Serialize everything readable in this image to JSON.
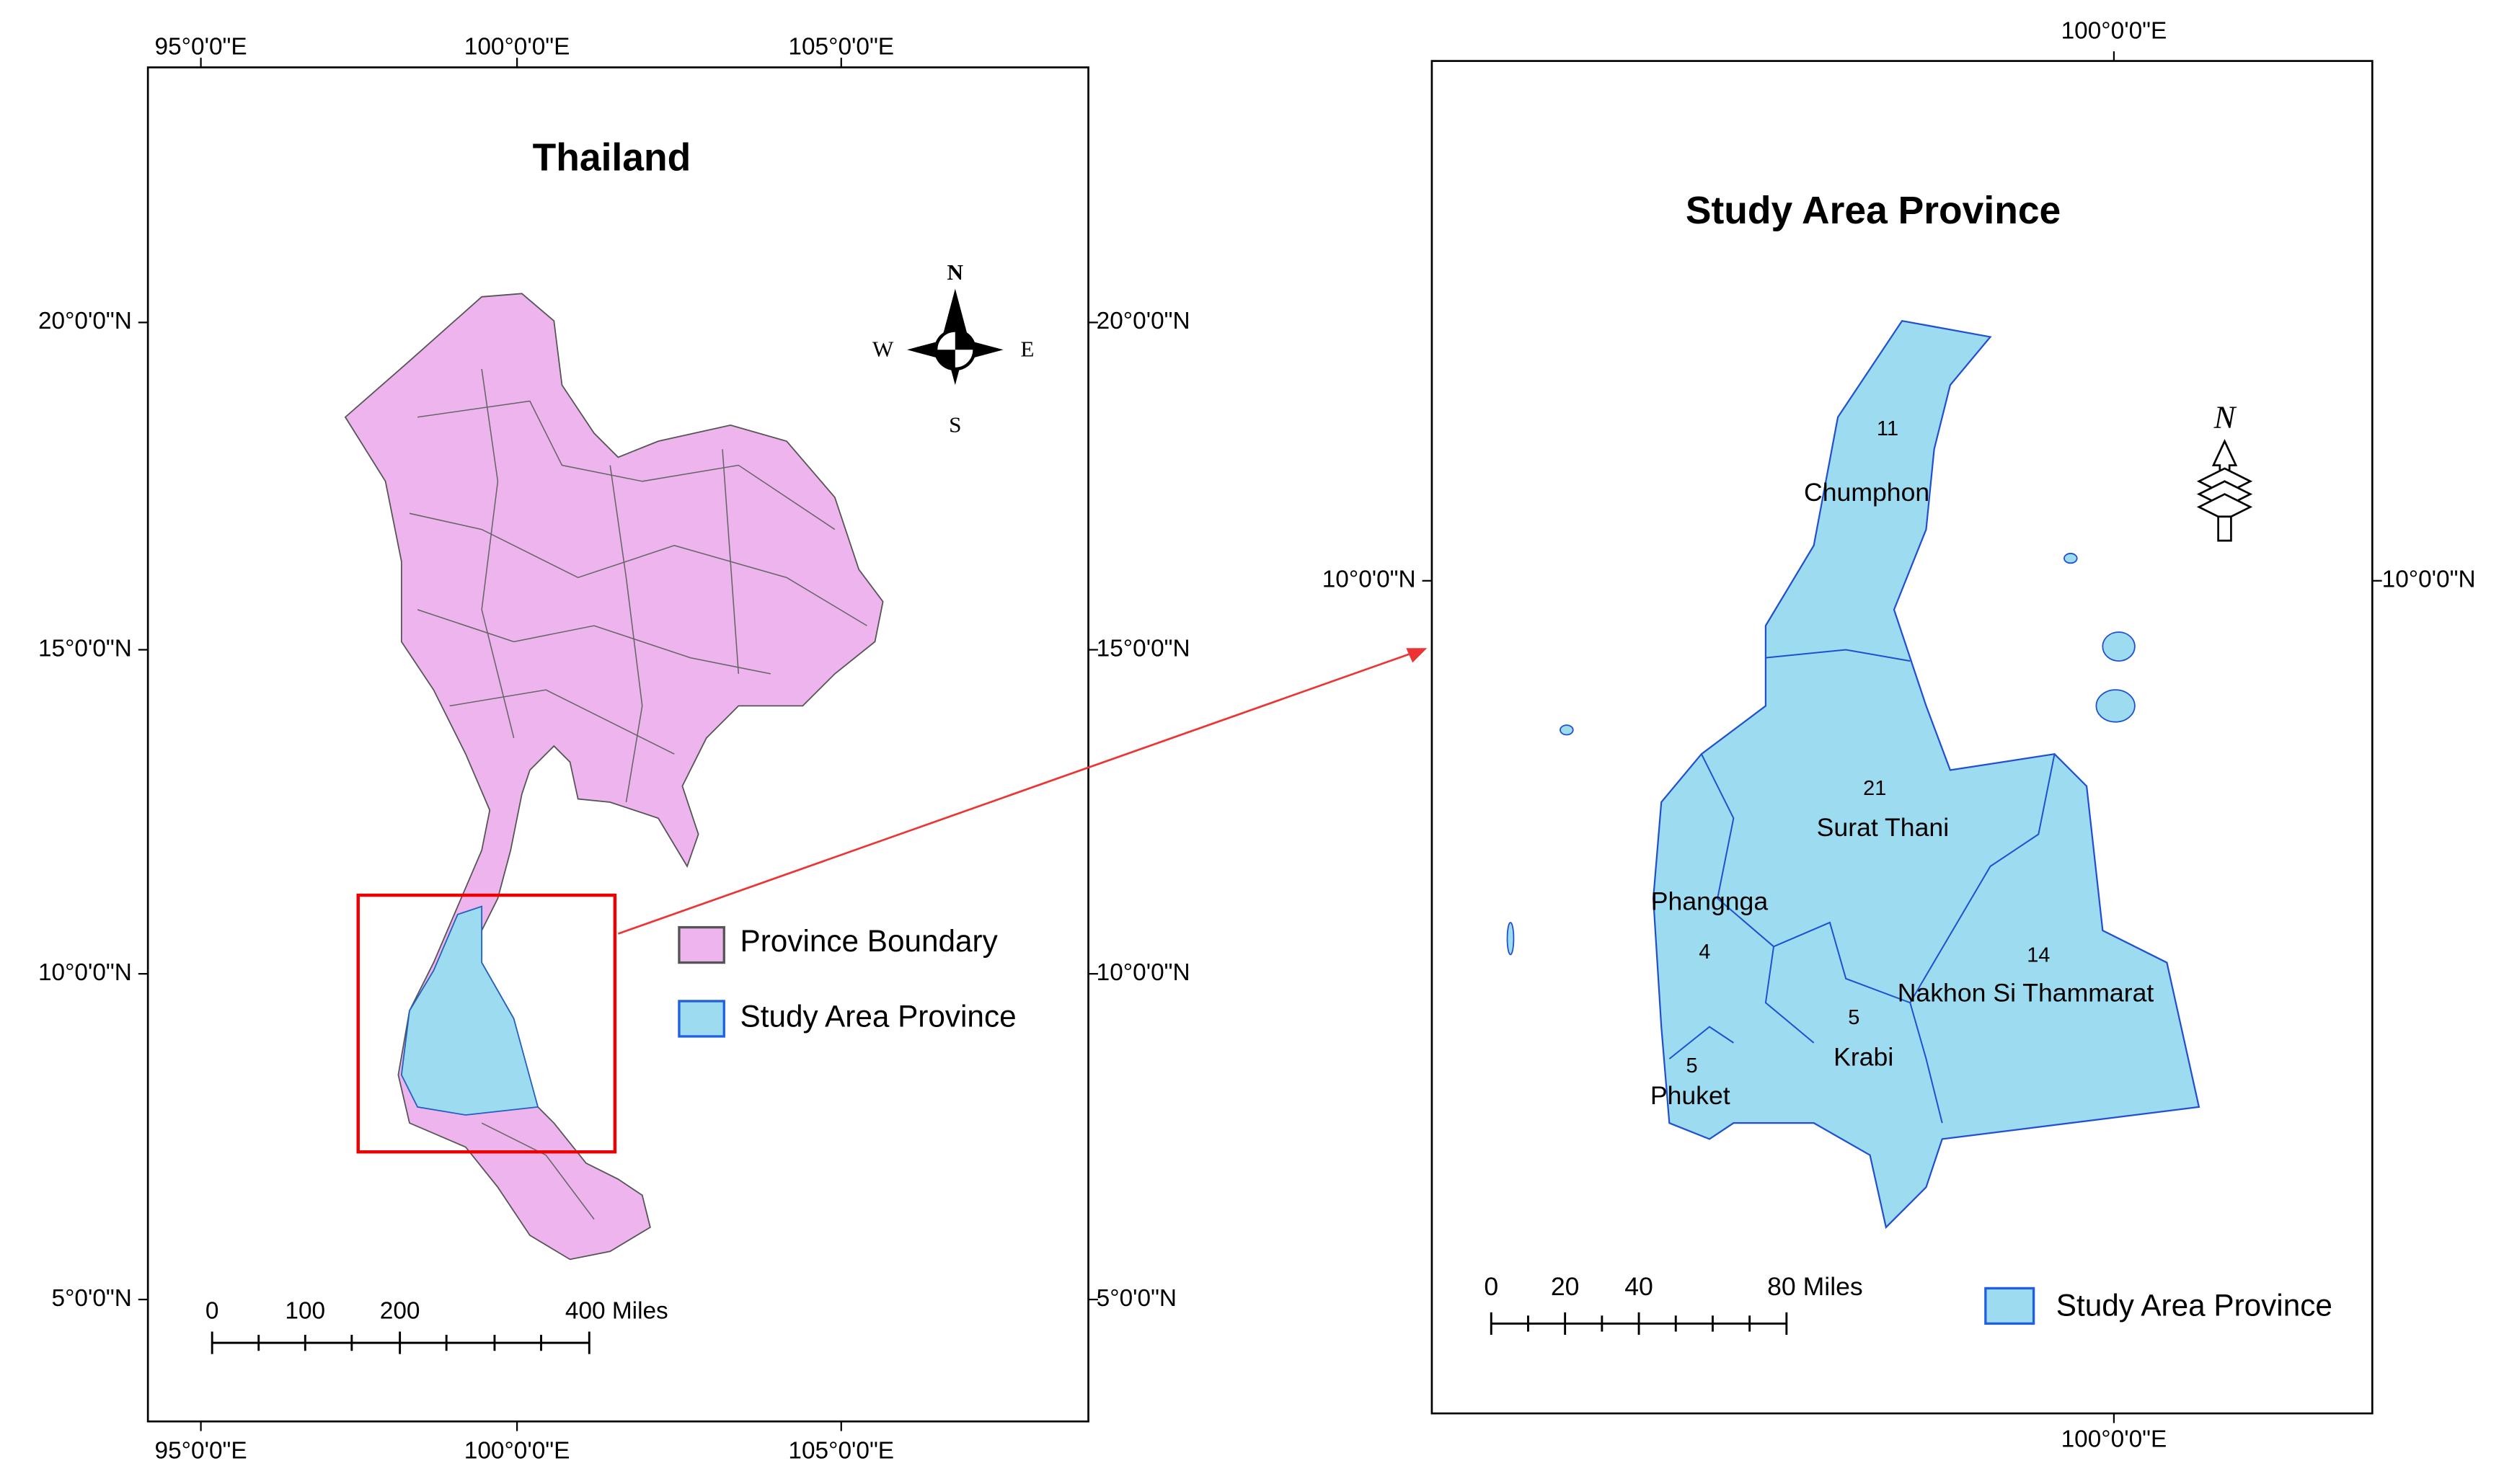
{
  "left_map": {
    "title": "Thailand",
    "lon_labels_top": [
      "95°0'0\"E",
      "100°0'0\"E",
      "105°0'0\"E"
    ],
    "lon_labels_bottom": [
      "95°0'0\"E",
      "100°0'0\"E",
      "105°0'0\"E"
    ],
    "lat_labels_left": [
      "20°0'0\"N",
      "15°0'0\"N",
      "10°0'0\"N",
      "5°0'0\"N"
    ],
    "lat_labels_right": [
      "20°0'0\"N",
      "15°0'0\"N",
      "10°0'0\"N",
      "5°0'0\"N"
    ],
    "compass": {
      "n": "N",
      "w": "W",
      "e": "E",
      "s": "S"
    },
    "scale_bar": [
      "0",
      "100",
      "200",
      "400 Miles"
    ],
    "legend": [
      "Province Boundary",
      "Study Area Province"
    ]
  },
  "right_map": {
    "title": "Study Area Province",
    "lon_label_top": "100°0'0\"E",
    "lon_label_bottom": "100°0'0\"E",
    "lat_label_left": "10°0'0\"N",
    "lat_label_right": "10°0'0\"N",
    "north": "N",
    "scale_bar": [
      "0",
      "20",
      "40",
      "80 Miles"
    ],
    "legend": "Study Area Province",
    "provinces": [
      {
        "name": "Chumphon",
        "number": "11"
      },
      {
        "name": "Surat Thani",
        "number": "21"
      },
      {
        "name": "Phangnga",
        "number": "4"
      },
      {
        "name": "Krabi",
        "number": "5"
      },
      {
        "name": "Phuket",
        "number": "5"
      },
      {
        "name": "Nakhon Si Thammarat",
        "number": "14"
      }
    ]
  }
}
